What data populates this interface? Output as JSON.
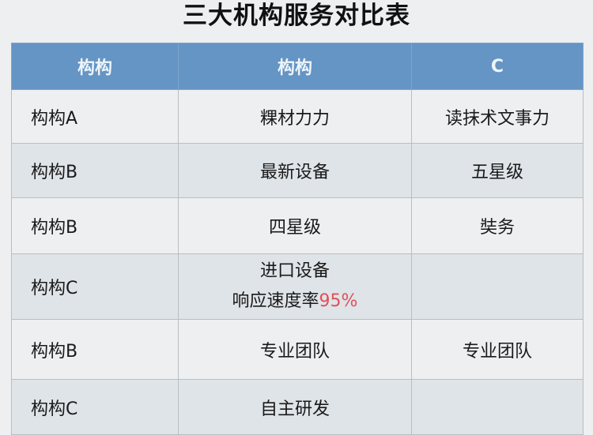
{
  "title": "三大机构服务对比表",
  "accent_color": "#e0505a",
  "header_color": "#6495c4",
  "columns": [
    "构构",
    "构构",
    "C"
  ],
  "rows": [
    {
      "c1": "构构A",
      "c2": "粿材力力",
      "c3": "读抹术文事力"
    },
    {
      "c1": "构构B",
      "c2": "最新设备",
      "c3": "五星级"
    },
    {
      "c1": "构构B",
      "c2": "四星级",
      "c3": "奘务"
    },
    {
      "c1": "构构C",
      "c2_line1": "进口设备",
      "c2_line2": "响应速度率",
      "c2_highlight": "95%",
      "c3": ""
    },
    {
      "c1": "构构B",
      "c2": "专业团队",
      "c3": "专业团队"
    },
    {
      "c1": "构构C",
      "c2": "自主研发",
      "c3": ""
    }
  ]
}
